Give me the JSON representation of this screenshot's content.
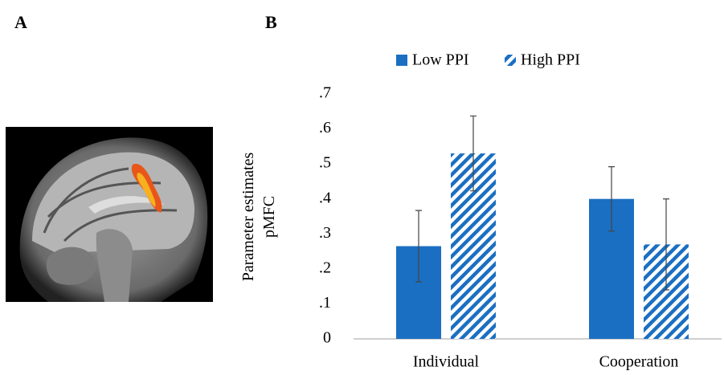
{
  "panel_labels": [
    "A",
    "B"
  ],
  "chart_data": {
    "type": "bar",
    "ylabel": [
      "Parameter estimates",
      "pMFC"
    ],
    "categories": [
      "Individual",
      "Cooperation"
    ],
    "series": [
      {
        "name": "Low PPI",
        "color": "#1b6fc2",
        "hatch": false,
        "values": [
          0.265,
          0.4
        ],
        "errors": [
          0.102,
          0.092
        ]
      },
      {
        "name": "High PPI",
        "color": "#1b6fc2",
        "hatch": true,
        "values": [
          0.53,
          0.27
        ],
        "errors": [
          0.107,
          0.13
        ]
      }
    ],
    "ylim": [
      0,
      0.7
    ],
    "yticks": [
      0,
      {
        "value": 0.1,
        "label": ".1"
      },
      {
        "value": 0.2,
        "label": ".2"
      },
      {
        "value": 0.3,
        "label": ".3"
      },
      {
        "value": 0.4,
        "label": ".4"
      },
      {
        "value": 0.5,
        "label": ".5"
      },
      {
        "value": 0.6,
        "label": ".6"
      },
      {
        "value": 0.7,
        "label": ".7"
      }
    ]
  }
}
